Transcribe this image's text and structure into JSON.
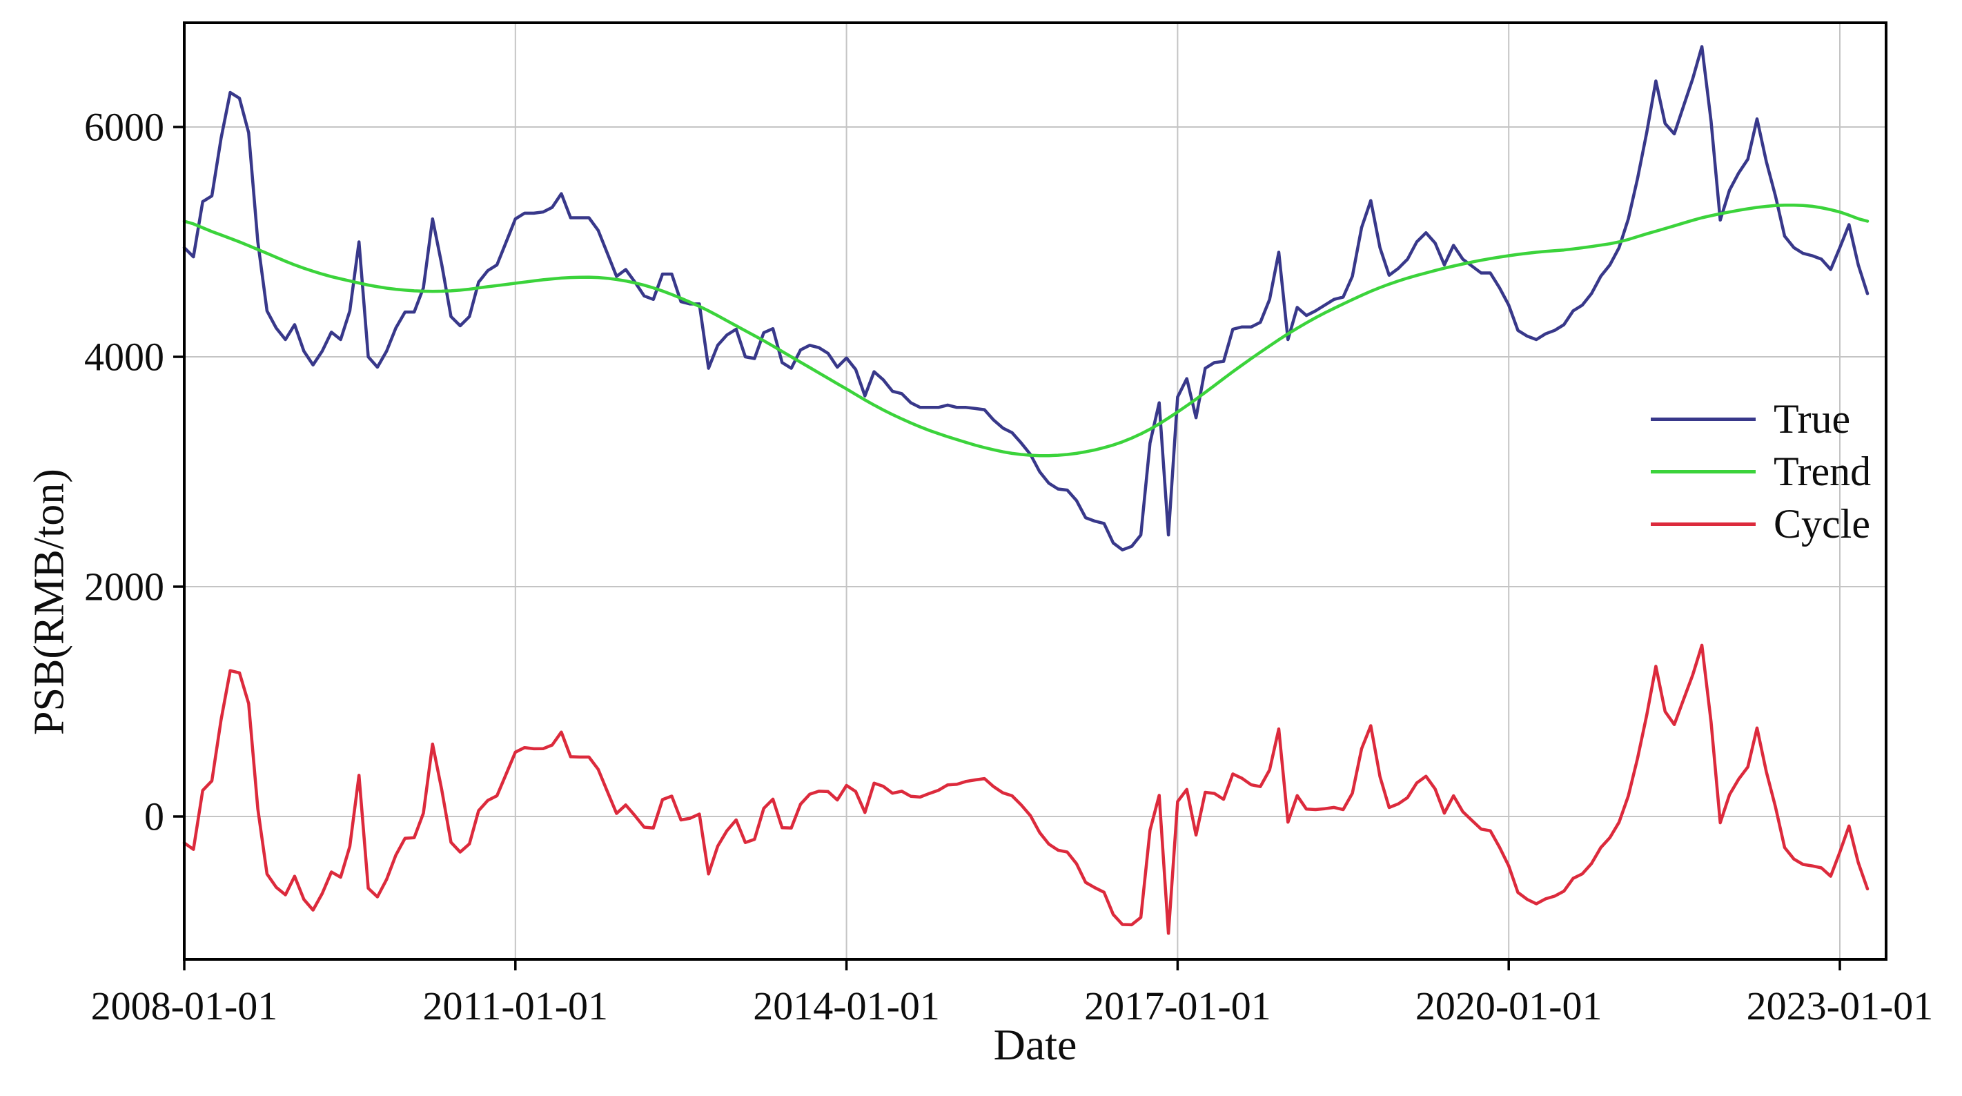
{
  "chart_data": {
    "type": "line",
    "title": "",
    "xlabel": "Date",
    "ylabel": "PSB(RMB/ton)",
    "grid": true,
    "legend_position": "center-right",
    "start_month": "2008-01",
    "frequency": "monthly",
    "x_tick_labels": [
      "2008-01-01",
      "2011-01-01",
      "2014-01-01",
      "2017-01-01",
      "2020-01-01",
      "2023-01-01"
    ],
    "x_tick_month_index": [
      0,
      36,
      72,
      108,
      144,
      180
    ],
    "y_tick_labels": [
      "0",
      "2000",
      "4000",
      "6000"
    ],
    "y_tick_values": [
      0,
      2000,
      4000,
      6000
    ],
    "xlim_month_index": [
      0,
      185
    ],
    "ylim": [
      -1243,
      6907
    ],
    "axis_color": "#000000",
    "grid_color": "#c4c4c4",
    "series": [
      {
        "name": "True",
        "color": "#38388a",
        "values": [
          4950,
          4870,
          5350,
          5400,
          5900,
          6300,
          6250,
          5950,
          5000,
          4400,
          4250,
          4150,
          4280,
          4050,
          3930,
          4050,
          4215,
          4150,
          4400,
          5000,
          4000,
          3910,
          4050,
          4250,
          4390,
          4390,
          4600,
          5200,
          4800,
          4350,
          4270,
          4350,
          4650,
          4750,
          4800,
          5000,
          5200,
          5250,
          5250,
          5260,
          5300,
          5420,
          5210,
          5210,
          5210,
          5100,
          4900,
          4700,
          4760,
          4650,
          4530,
          4500,
          4720,
          4720,
          4480,
          4460,
          4460,
          3900,
          4100,
          4190,
          4240,
          4000,
          3985,
          4210,
          4245,
          3950,
          3900,
          4060,
          4100,
          4080,
          4030,
          3910,
          3990,
          3890,
          3660,
          3870,
          3800,
          3700,
          3680,
          3600,
          3560,
          3560,
          3560,
          3580,
          3560,
          3560,
          3550,
          3540,
          3450,
          3380,
          3340,
          3250,
          3150,
          3000,
          2900,
          2850,
          2840,
          2750,
          2600,
          2570,
          2550,
          2380,
          2320,
          2350,
          2450,
          3250,
          3600,
          2450,
          3650,
          3810,
          3470,
          3900,
          3950,
          3960,
          4240,
          4260,
          4260,
          4300,
          4500,
          4910,
          4150,
          4430,
          4360,
          4400,
          4450,
          4500,
          4520,
          4700,
          5125,
          5360,
          4950,
          4710,
          4770,
          4850,
          5000,
          5080,
          4990,
          4800,
          4970,
          4850,
          4790,
          4730,
          4730,
          4600,
          4450,
          4230,
          4180,
          4150,
          4200,
          4230,
          4280,
          4400,
          4450,
          4550,
          4700,
          4800,
          4950,
          5200,
          5550,
          5950,
          6400,
          6030,
          5940,
          6180,
          6420,
          6700,
          6050,
          5190,
          5450,
          5600,
          5720,
          6070,
          5700,
          5400,
          5050,
          4950,
          4900,
          4880,
          4850,
          4760,
          4950,
          5150,
          4800,
          4550
        ]
      },
      {
        "name": "Trend",
        "color": "#3bd33b",
        "anchor_step_months": 3,
        "anchor_values": [
          5180,
          5090,
          5000,
          4900,
          4800,
          4720,
          4660,
          4610,
          4580,
          4570,
          4580,
          4610,
          4640,
          4670,
          4690,
          4690,
          4660,
          4600,
          4510,
          4400,
          4270,
          4140,
          4000,
          3860,
          3720,
          3580,
          3460,
          3360,
          3280,
          3210,
          3160,
          3140,
          3150,
          3190,
          3260,
          3370,
          3520,
          3690,
          3870,
          4040,
          4200,
          4340,
          4460,
          4570,
          4660,
          4730,
          4790,
          4840,
          4880,
          4910,
          4930,
          4960,
          5000,
          5070,
          5140,
          5210,
          5260,
          5300,
          5320,
          5310,
          5260,
          5180
        ]
      },
      {
        "name": "Cycle",
        "color": "#dc2a3c",
        "derivation": "True minus Trend"
      }
    ]
  }
}
